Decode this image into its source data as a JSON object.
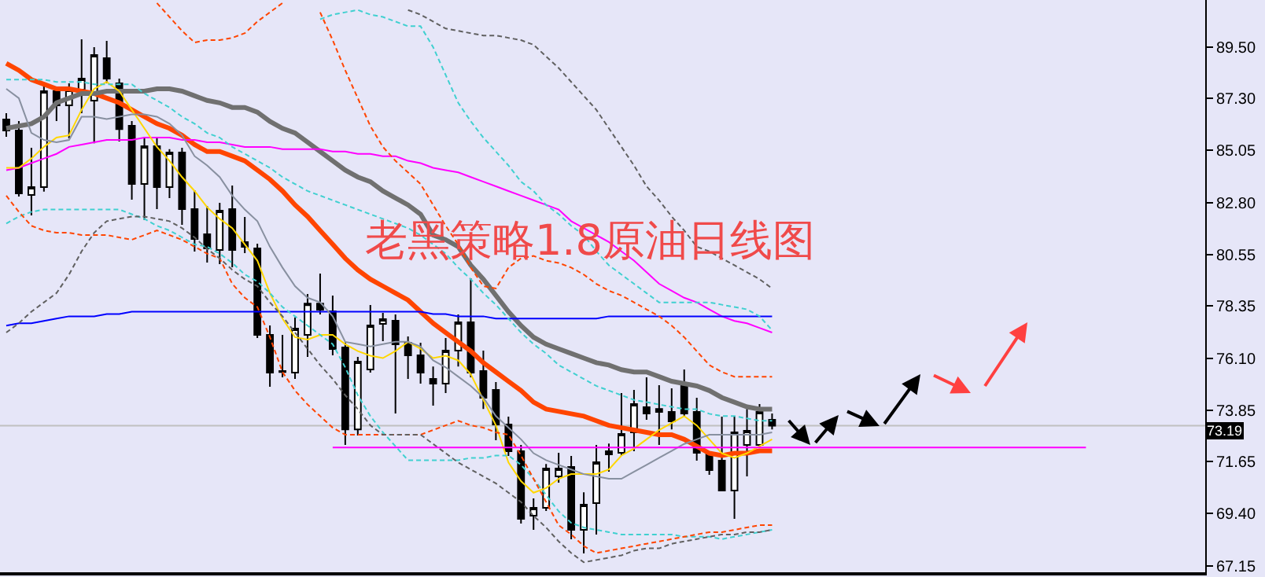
{
  "chart_data": {
    "type": "candlestick",
    "title": "老黑策略1.8原油日线图",
    "categories": [
      null,
      null,
      null,
      null,
      null,
      null,
      null,
      null,
      null,
      null,
      null,
      null,
      null,
      null,
      null,
      null,
      null,
      null,
      null,
      null,
      null,
      null,
      null,
      null,
      null,
      null,
      null,
      null,
      null,
      null,
      null,
      null,
      null,
      null,
      null,
      null,
      null,
      null,
      null,
      null,
      null,
      null,
      null,
      null,
      null,
      null,
      null,
      null,
      null,
      null,
      null,
      null,
      null,
      null,
      null,
      null,
      null,
      null,
      null,
      null,
      null,
      null,
      null,
      null,
      null,
      null,
      null,
      null,
      null,
      null,
      null,
      null,
      null,
      null,
      null,
      null,
      null,
      null,
      null,
      null,
      null,
      null,
      null,
      null,
      null,
      null,
      null,
      null,
      null,
      null,
      null,
      null,
      null,
      null,
      null,
      null
    ],
    "ohlc": [
      [
        86.38,
        86.65,
        85.64,
        85.91
      ],
      [
        85.91,
        86.31,
        83.06,
        83.2
      ],
      [
        83.13,
        85.16,
        82.25,
        83.47
      ],
      [
        83.47,
        87.8,
        83.27,
        87.6
      ],
      [
        87.6,
        87.8,
        86.31,
        86.99
      ],
      [
        86.99,
        87.94,
        85.57,
        87.67
      ],
      [
        87.67,
        89.84,
        86.65,
        88.14
      ],
      [
        87.19,
        89.5,
        85.36,
        89.16
      ],
      [
        89.02,
        89.77,
        87.94,
        88.14
      ],
      [
        87.94,
        88.14,
        85.43,
        85.97
      ],
      [
        86.11,
        86.31,
        82.93,
        83.6
      ],
      [
        83.6,
        85.57,
        82.05,
        85.23
      ],
      [
        85.23,
        85.57,
        82.52,
        83.47
      ],
      [
        83.47,
        85.1,
        82.99,
        84.96
      ],
      [
        84.96,
        85.16,
        81.84,
        82.52
      ],
      [
        82.52,
        83.33,
        80.69,
        81.23
      ],
      [
        81.44,
        82.65,
        80.22,
        80.83
      ],
      [
        80.76,
        82.79,
        80.15,
        82.45
      ],
      [
        82.52,
        83.54,
        80.01,
        80.76
      ],
      [
        81.1,
        82.18,
        80.62,
        80.89
      ],
      [
        80.83,
        81.03,
        76.96,
        77.1
      ],
      [
        77.1,
        77.51,
        74.86,
        75.47
      ],
      [
        75.54,
        77.1,
        75.27,
        75.5
      ],
      [
        75.47,
        77.85,
        75.2,
        77.37
      ],
      [
        77.1,
        78.86,
        76.15,
        78.45
      ],
      [
        78.45,
        79.74,
        77.98,
        78.18
      ],
      [
        78.12,
        78.79,
        76.22,
        76.49
      ],
      [
        76.56,
        76.76,
        72.36,
        73.03
      ],
      [
        73.03,
        76.15,
        72.76,
        75.95
      ],
      [
        75.61,
        78.39,
        75.47,
        77.51
      ],
      [
        77.57,
        78.05,
        76.83,
        77.78
      ],
      [
        77.71,
        77.98,
        73.71,
        76.69
      ],
      [
        76.76,
        77.03,
        75.2,
        76.22
      ],
      [
        76.22,
        76.76,
        75.0,
        75.47
      ],
      [
        75.2,
        75.74,
        74.05,
        75.0
      ],
      [
        75.0,
        76.96,
        74.59,
        76.42
      ],
      [
        76.42,
        77.98,
        75.74,
        77.64
      ],
      [
        77.64,
        79.54,
        75.27,
        75.47
      ],
      [
        75.54,
        76.42,
        73.91,
        74.39
      ],
      [
        74.73,
        75.07,
        72.56,
        73.24
      ],
      [
        73.24,
        73.58,
        71.88,
        72.09
      ],
      [
        72.09,
        72.36,
        68.97,
        69.17
      ],
      [
        69.31,
        70.05,
        68.7,
        69.65
      ],
      [
        69.65,
        71.54,
        69.51,
        71.34
      ],
      [
        71.0,
        72.02,
        70.73,
        71.34
      ],
      [
        71.41,
        71.88,
        68.29,
        68.7
      ],
      [
        68.7,
        70.32,
        67.68,
        69.78
      ],
      [
        69.85,
        72.36,
        68.5,
        71.61
      ],
      [
        72.09,
        72.42,
        71.21,
        71.95
      ],
      [
        72.02,
        74.59,
        71.88,
        72.83
      ],
      [
        72.9,
        74.73,
        72.09,
        74.12
      ],
      [
        73.98,
        75.27,
        73.44,
        73.71
      ],
      [
        73.78,
        74.93,
        72.36,
        73.91
      ],
      [
        73.78,
        74.8,
        73.03,
        73.37
      ],
      [
        75.0,
        75.61,
        73.58,
        73.71
      ],
      [
        73.78,
        74.39,
        71.68,
        72.02
      ],
      [
        71.95,
        72.09,
        71.07,
        71.27
      ],
      [
        71.68,
        73.58,
        70.39,
        70.39
      ],
      [
        70.39,
        73.58,
        69.17,
        72.9
      ],
      [
        72.36,
        73.91,
        71.0,
        72.97
      ],
      [
        72.36,
        74.12,
        72.22,
        73.78
      ],
      [
        73.44,
        73.71,
        73.03,
        73.19
      ],
      null,
      null,
      null,
      null,
      null,
      null,
      null,
      null,
      null,
      null,
      null,
      null,
      null,
      null,
      null,
      null,
      null,
      null,
      null,
      null,
      null,
      null,
      null,
      null,
      null,
      null,
      null,
      null,
      null,
      null,
      null,
      null,
      null,
      null
    ],
    "series": [
      {
        "type": "line",
        "color": "#ff4500",
        "values": [
          88.8,
          88.5,
          88.1,
          87.9,
          87.7,
          87.7,
          87.6,
          87.5,
          87.3,
          87.1,
          86.8,
          86.5,
          86.2,
          86.0,
          85.7,
          85.3,
          85.0,
          85.0,
          84.8,
          84.6,
          84.2,
          83.8,
          83.3,
          82.7,
          82.2,
          81.6,
          81.0,
          80.4,
          79.9,
          79.5,
          79.2,
          78.9,
          78.6,
          78.1,
          77.6,
          77.2,
          76.8,
          76.4,
          75.9,
          75.5,
          75.1,
          74.7,
          74.2,
          73.9,
          73.8,
          73.7,
          73.6,
          73.4,
          73.2,
          73.1,
          73.0,
          72.9,
          72.8,
          72.8,
          72.6,
          72.3,
          72.0,
          71.9,
          72.0,
          72.0,
          72.1,
          72.1,
          null,
          null,
          null,
          null,
          null,
          null,
          null,
          null,
          null,
          null,
          null,
          null,
          null,
          null,
          null,
          null,
          null,
          null,
          null,
          null,
          null,
          null,
          null,
          null,
          null,
          null,
          null,
          null,
          null,
          null,
          null,
          null,
          null,
          null
        ]
      },
      {
        "type": "line",
        "color": "#707070",
        "values": [
          86.0,
          86.1,
          86.2,
          86.5,
          87.1,
          87.3,
          87.5,
          87.5,
          87.6,
          87.6,
          87.6,
          87.6,
          87.7,
          87.7,
          87.6,
          87.4,
          87.2,
          87.1,
          86.9,
          86.9,
          86.7,
          86.3,
          86.0,
          85.8,
          85.4,
          85.0,
          84.6,
          84.2,
          83.9,
          83.7,
          83.3,
          83.0,
          82.7,
          82.3,
          81.4,
          81.2,
          80.9,
          80.1,
          79.5,
          78.8,
          78.1,
          77.5,
          77.0,
          76.7,
          76.5,
          76.3,
          76.1,
          75.9,
          75.8,
          75.6,
          75.5,
          75.5,
          75.3,
          75.1,
          75.0,
          74.9,
          74.7,
          74.4,
          74.2,
          74.0,
          73.9,
          73.9,
          null,
          null,
          null,
          null,
          null,
          null,
          null,
          null,
          null,
          null,
          null,
          null,
          null,
          null,
          null,
          null,
          null,
          null,
          null,
          null,
          null,
          null,
          null,
          null,
          null,
          null,
          null,
          null,
          null,
          null,
          null,
          null,
          null,
          null
        ]
      },
      {
        "type": "line",
        "color": "#ff00ff",
        "values": [
          84.2,
          84.3,
          84.5,
          84.7,
          84.9,
          85.2,
          85.3,
          85.4,
          85.5,
          85.5,
          85.5,
          85.6,
          85.6,
          85.6,
          85.5,
          85.5,
          85.4,
          85.4,
          85.3,
          85.2,
          85.2,
          85.2,
          85.1,
          85.1,
          85.1,
          85.1,
          85.0,
          85.0,
          84.9,
          84.9,
          84.8,
          84.8,
          84.6,
          84.5,
          84.3,
          84.2,
          84.1,
          83.9,
          83.7,
          83.5,
          83.3,
          83.1,
          82.9,
          82.7,
          82.5,
          82.0,
          81.7,
          81.4,
          81.1,
          80.7,
          80.3,
          79.8,
          79.3,
          79.0,
          78.7,
          78.5,
          78.2,
          77.9,
          77.7,
          77.6,
          77.4,
          77.2,
          null,
          null,
          null,
          null,
          null,
          null,
          null,
          null,
          null,
          null,
          null,
          null,
          null,
          null,
          null,
          null,
          null,
          null,
          null,
          null,
          null,
          null,
          null,
          null,
          null,
          null,
          null,
          null,
          null,
          null,
          null,
          null,
          null,
          null
        ]
      },
      {
        "type": "line",
        "color": "#0000ff",
        "values": [
          77.5,
          77.6,
          77.6,
          77.7,
          77.8,
          77.9,
          77.9,
          77.9,
          78.0,
          78.0,
          78.1,
          78.1,
          78.1,
          78.1,
          78.1,
          78.1,
          78.1,
          78.1,
          78.1,
          78.1,
          78.1,
          78.1,
          78.1,
          78.1,
          78.1,
          78.1,
          78.1,
          78.1,
          78.1,
          78.1,
          78.1,
          78.1,
          78.1,
          78.1,
          78.0,
          78.0,
          77.9,
          77.9,
          77.9,
          77.8,
          77.8,
          77.8,
          77.8,
          77.8,
          77.8,
          77.8,
          77.8,
          77.8,
          77.9,
          77.9,
          77.9,
          77.9,
          77.9,
          77.9,
          77.9,
          77.9,
          77.9,
          77.9,
          77.9,
          77.9,
          77.9,
          77.9,
          null,
          null,
          null,
          null,
          null,
          null,
          null,
          null,
          null,
          null,
          null,
          null,
          null,
          null,
          null,
          null,
          null,
          null,
          null,
          null,
          null,
          null,
          null,
          null,
          null,
          null,
          null,
          null,
          null,
          null,
          null,
          null,
          null,
          null
        ]
      },
      {
        "type": "line",
        "color": "#ffd700",
        "values": [
          84.3,
          84.3,
          84.7,
          85.2,
          85.6,
          85.7,
          86.8,
          87.7,
          88.0,
          87.6,
          86.8,
          86.0,
          85.2,
          84.6,
          83.9,
          83.3,
          82.6,
          82.1,
          81.7,
          81.0,
          80.3,
          78.9,
          77.8,
          77.0,
          76.9,
          77.1,
          77.1,
          76.7,
          76.4,
          76.2,
          76.1,
          76.4,
          76.8,
          76.5,
          76.1,
          76.2,
          76.0,
          75.4,
          74.3,
          73.2,
          71.6,
          70.8,
          70.3,
          70.5,
          70.9,
          71.1,
          71.1,
          71.1,
          71.3,
          71.9,
          72.2,
          72.6,
          73.0,
          73.3,
          73.6,
          73.2,
          72.6,
          72.0,
          71.8,
          72.0,
          72.3,
          72.6,
          null,
          null,
          null,
          null,
          null,
          null,
          null,
          null,
          null,
          null,
          null,
          null,
          null,
          null,
          null,
          null,
          null,
          null,
          null,
          null,
          null,
          null,
          null,
          null,
          null,
          null,
          null,
          null,
          null,
          null,
          null,
          null,
          null,
          null
        ]
      },
      {
        "type": "line",
        "color": "#8890a0",
        "values": [
          87.7,
          87.3,
          85.8,
          85.5,
          85.4,
          85.5,
          86.5,
          86.5,
          86.4,
          86.5,
          86.6,
          86.6,
          86.5,
          86.2,
          85.7,
          84.8,
          84.4,
          83.9,
          83.1,
          82.5,
          82.0,
          80.9,
          80.0,
          79.2,
          78.7,
          78.5,
          77.9,
          76.8,
          76.7,
          76.6,
          76.7,
          76.8,
          76.8,
          76.6,
          76.0,
          75.7,
          75.3,
          74.9,
          74.4,
          73.6,
          73.1,
          72.6,
          72.0,
          71.7,
          71.5,
          71.3,
          71.1,
          71.0,
          70.9,
          70.9,
          71.2,
          71.5,
          71.8,
          72.1,
          72.4,
          72.6,
          72.8,
          72.8,
          72.8,
          72.8,
          72.8,
          72.9,
          null,
          null,
          null,
          null,
          null,
          null,
          null,
          null,
          null,
          null,
          null,
          null,
          null,
          null,
          null,
          null,
          null,
          null,
          null,
          null,
          null,
          null,
          null,
          null,
          null,
          null,
          null,
          null,
          null,
          null,
          null,
          null,
          null,
          null
        ]
      },
      {
        "type": "line",
        "color": "#40d0d0",
        "line_style": "dashed",
        "values": [
          88.1,
          88.1,
          88.1,
          88.1,
          88.0,
          88.0,
          88.0,
          87.9,
          87.9,
          87.9,
          87.9,
          87.5,
          87.2,
          86.9,
          86.5,
          86.2,
          85.8,
          85.6,
          85.2,
          84.9,
          84.6,
          84.3,
          83.9,
          83.6,
          83.3,
          83.1,
          82.9,
          82.7,
          82.5,
          82.3,
          82.1,
          81.9,
          81.7,
          81.4,
          81.0,
          80.6,
          80.0,
          79.5,
          78.9,
          78.4,
          77.8,
          77.2,
          76.7,
          76.3,
          75.8,
          75.5,
          75.2,
          74.9,
          74.7,
          74.5,
          74.3,
          74.2,
          74.1,
          74.0,
          73.9,
          73.9,
          73.7,
          73.6,
          73.6,
          73.5,
          73.4,
          73.4,
          null,
          null,
          null,
          null,
          null,
          null,
          null,
          null,
          null,
          null,
          null,
          null,
          null,
          null,
          null,
          null,
          null,
          null,
          null,
          null,
          null,
          null,
          null,
          null,
          null,
          null,
          null,
          null,
          null,
          null,
          null,
          null,
          null,
          null
        ]
      },
      {
        "type": "line",
        "color": "#40d0d0",
        "line_style": "dashed",
        "values": [
          81.9,
          82.2,
          82.4,
          82.5,
          82.5,
          82.5,
          82.5,
          82.5,
          82.5,
          82.5,
          82.3,
          82.1,
          81.8,
          81.6,
          81.3,
          81.0,
          80.9,
          80.6,
          80.2,
          79.7,
          79.4,
          78.9,
          78.3,
          77.9,
          77.5,
          77.1,
          76.7,
          75.7,
          74.5,
          73.6,
          72.9,
          72.3,
          71.7,
          71.7,
          71.7,
          71.7,
          71.7,
          71.8,
          71.8,
          71.9,
          71.9,
          71.5,
          70.9,
          70.2,
          69.5,
          69.0,
          68.8,
          68.7,
          68.6,
          68.5,
          68.5,
          68.5,
          68.5,
          68.5,
          68.4,
          68.4,
          68.4,
          68.3,
          68.4,
          68.5,
          68.6,
          68.7,
          null,
          null,
          null,
          null,
          null,
          null,
          null,
          null,
          null,
          null,
          null,
          null,
          null,
          null,
          null,
          null,
          null,
          null,
          null,
          null,
          null,
          null,
          null,
          null,
          null,
          null,
          null,
          null,
          null,
          null,
          null,
          null,
          null,
          null
        ]
      },
      {
        "type": "line",
        "color": "#40d0d0",
        "line_style": "dashed",
        "values": [
          null,
          null,
          null,
          null,
          null,
          null,
          null,
          null,
          null,
          null,
          null,
          null,
          null,
          null,
          null,
          null,
          null,
          null,
          null,
          null,
          null,
          null,
          null,
          null,
          null,
          90.7,
          90.9,
          91.0,
          91.1,
          90.9,
          90.8,
          90.6,
          90.4,
          90.4,
          89.5,
          88.3,
          87.1,
          86.3,
          85.6,
          85.0,
          84.4,
          83.7,
          83.3,
          82.7,
          82.3,
          81.8,
          81.4,
          80.7,
          80.1,
          79.7,
          79.3,
          78.9,
          78.5,
          78.5,
          78.5,
          78.5,
          78.5,
          78.4,
          78.3,
          78.2,
          77.9,
          77.3,
          null,
          null,
          null,
          null,
          null,
          null,
          null,
          null,
          null,
          null,
          null,
          null,
          null,
          null,
          null,
          null,
          null,
          null,
          null,
          null,
          null,
          null,
          null,
          null,
          null,
          null,
          null,
          null,
          null,
          null,
          null,
          null,
          null,
          null
        ]
      },
      {
        "type": "line",
        "color": "#ff4500",
        "line_style": "dashed",
        "values": [
          null,
          null,
          null,
          null,
          null,
          null,
          null,
          null,
          null,
          null,
          null,
          null,
          91.4,
          90.8,
          90.2,
          89.7,
          89.8,
          89.8,
          89.9,
          90.1,
          90.6,
          91.0,
          91.4,
          null,
          null,
          91.0,
          89.8,
          88.5,
          87.3,
          86.1,
          85.2,
          84.6,
          84.1,
          83.6,
          82.7,
          81.8,
          81.0,
          80.0,
          79.2,
          79.1,
          80.0,
          80.4,
          80.5,
          80.3,
          80.2,
          80.0,
          79.7,
          79.3,
          79.0,
          78.8,
          78.5,
          78.2,
          77.9,
          77.5,
          77.0,
          76.4,
          75.8,
          75.5,
          75.3,
          75.3,
          75.3,
          75.3,
          null,
          null,
          null,
          null,
          null,
          null,
          null,
          null,
          null,
          null,
          null,
          null,
          null,
          null,
          null,
          null,
          null,
          null,
          null,
          null,
          null,
          null,
          null,
          null,
          null,
          null,
          null,
          null,
          null,
          null,
          null,
          null,
          null,
          null
        ]
      },
      {
        "type": "line",
        "color": "#ff4500",
        "line_style": "dashed",
        "values": [
          83.1,
          82.4,
          81.8,
          81.6,
          81.5,
          81.5,
          81.4,
          81.4,
          81.4,
          81.3,
          81.2,
          81.4,
          81.6,
          81.4,
          81.2,
          80.9,
          80.6,
          80.4,
          79.3,
          78.7,
          78.3,
          77.0,
          75.5,
          74.7,
          74.1,
          73.6,
          73.1,
          72.8,
          72.8,
          72.8,
          72.8,
          72.8,
          72.8,
          72.8,
          73.0,
          73.2,
          73.4,
          73.2,
          73.1,
          72.9,
          72.8,
          71.9,
          70.9,
          69.9,
          68.9,
          68.5,
          68.0,
          67.7,
          67.8,
          67.9,
          68.0,
          68.1,
          68.2,
          68.3,
          68.4,
          68.5,
          68.6,
          68.6,
          68.7,
          68.8,
          68.9,
          68.9,
          null,
          null,
          null,
          null,
          null,
          null,
          null,
          null,
          null,
          null,
          null,
          null,
          null,
          null,
          null,
          null,
          null,
          null,
          null,
          null,
          null,
          null,
          null,
          null,
          null,
          null,
          null,
          null,
          null,
          null,
          null,
          null,
          null,
          null
        ]
      },
      {
        "type": "line",
        "color": "#606060",
        "line_style": "dashed",
        "values": [
          null,
          null,
          null,
          null,
          null,
          null,
          null,
          null,
          null,
          null,
          null,
          null,
          null,
          null,
          null,
          null,
          null,
          null,
          null,
          null,
          null,
          null,
          null,
          null,
          null,
          null,
          null,
          null,
          null,
          null,
          null,
          null,
          91.1,
          90.9,
          90.6,
          90.3,
          90.2,
          90.1,
          90.0,
          90.0,
          89.9,
          89.8,
          89.6,
          89.1,
          88.6,
          88.0,
          87.4,
          86.8,
          86.0,
          85.2,
          84.4,
          83.5,
          82.9,
          82.2,
          81.6,
          80.9,
          80.7,
          80.4,
          80.1,
          79.8,
          79.5,
          79.1,
          null,
          null,
          null,
          null,
          null,
          null,
          null,
          null,
          null,
          null,
          null,
          null,
          null,
          null,
          null,
          null,
          null,
          null,
          null,
          null,
          null,
          null,
          null,
          null,
          null,
          null,
          null,
          null,
          null,
          null,
          null,
          null,
          null,
          null
        ]
      },
      {
        "type": "line",
        "color": "#606060",
        "line_style": "dashed",
        "values": [
          77.2,
          77.6,
          78.1,
          78.5,
          78.9,
          79.7,
          80.7,
          81.5,
          82.0,
          82.1,
          82.2,
          82.2,
          82.1,
          82.0,
          81.7,
          81.3,
          80.8,
          80.4,
          79.9,
          79.5,
          79.2,
          78.5,
          77.9,
          77.2,
          76.5,
          75.8,
          75.2,
          74.5,
          73.9,
          73.2,
          72.8,
          72.8,
          72.8,
          72.8,
          72.4,
          72.0,
          71.6,
          71.3,
          71.0,
          70.7,
          70.3,
          69.9,
          69.3,
          68.8,
          68.2,
          67.7,
          67.3,
          67.4,
          67.5,
          67.6,
          67.8,
          67.9,
          67.9,
          68.1,
          68.2,
          68.3,
          68.4,
          68.5,
          68.5,
          68.6,
          68.6,
          68.7,
          null,
          null,
          null,
          null,
          null,
          null,
          null,
          null,
          null,
          null,
          null,
          null,
          null,
          null,
          null,
          null,
          null,
          null,
          null,
          null,
          null,
          null,
          null,
          null,
          null,
          null,
          null,
          null,
          null,
          null,
          null,
          null,
          null,
          null
        ]
      },
      {
        "type": "line",
        "color": "#ff00ff",
        "values": [
          null,
          null,
          null,
          null,
          null,
          null,
          null,
          null,
          null,
          null,
          null,
          null,
          null,
          null,
          null,
          null,
          null,
          null,
          null,
          null,
          null,
          null,
          null,
          null,
          null,
          null,
          72.25,
          72.25,
          72.25,
          72.25,
          72.25,
          72.25,
          72.25,
          72.25,
          72.25,
          72.25,
          72.25,
          72.25,
          72.25,
          72.25,
          72.25,
          72.25,
          72.25,
          72.25,
          72.25,
          72.25,
          72.25,
          72.25,
          72.25,
          72.25,
          72.25,
          72.25,
          72.25,
          72.25,
          72.25,
          72.25,
          72.25,
          72.25,
          72.25,
          72.25,
          72.25,
          72.25,
          72.25,
          72.25,
          72.25,
          72.25,
          72.25,
          72.25,
          72.25,
          72.25,
          72.25,
          72.25,
          72.25,
          72.25,
          72.25,
          72.25,
          72.25,
          72.25,
          72.25,
          72.25,
          72.25,
          72.25,
          72.25,
          72.25,
          72.25,
          72.25,
          72.25,
          null,
          null,
          null,
          null,
          null,
          null,
          null,
          null,
          null
        ]
      }
    ],
    "ref_lines": [
      {
        "axis": "y",
        "value": 73.19,
        "label": "73.19",
        "color": "#c0c0c0"
      }
    ],
    "ylim": [
      66.87,
      91.53
    ],
    "yticks": [
      67.15,
      {
        "value": 69.4,
        "label": "69.40"
      },
      71.65,
      73.85,
      {
        "value": 76.1,
        "label": "76.10"
      },
      78.35,
      80.55,
      {
        "value": 82.8,
        "label": "82.80"
      },
      85.05,
      {
        "value": 87.3,
        "label": "87.30"
      },
      {
        "value": 89.5,
        "label": "89.50"
      }
    ],
    "tick_labels": "y",
    "grid": false
  }
}
